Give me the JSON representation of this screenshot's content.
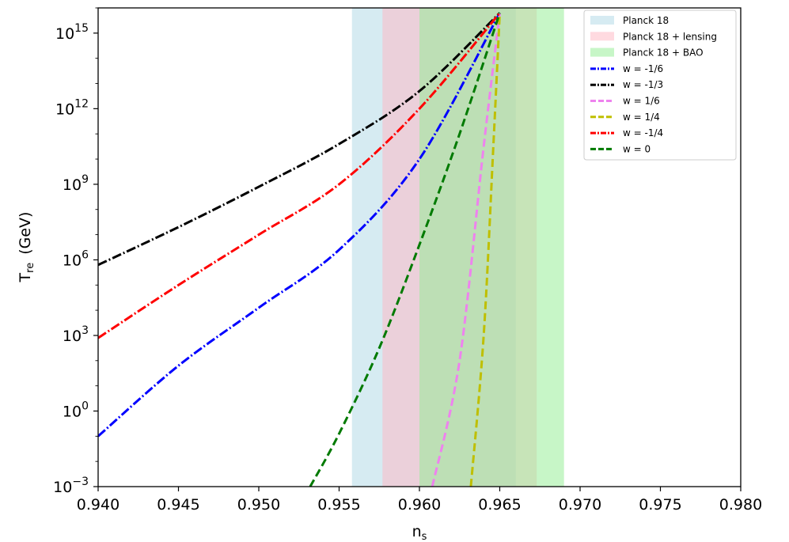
{
  "chart_data": {
    "type": "line",
    "title": "",
    "xlabel": {
      "main": "n",
      "sub": "s"
    },
    "ylabel": {
      "main": "T",
      "sub": "re",
      "unit": "(GeV)"
    },
    "xlim": [
      0.94,
      0.98
    ],
    "ylim_log10": [
      -3,
      16.0
    ],
    "yscale": "log",
    "grid": false,
    "legend_position": "top-right",
    "x_ticks": [
      "0.940",
      "0.945",
      "0.950",
      "0.955",
      "0.960",
      "0.965",
      "0.970",
      "0.975",
      "0.980"
    ],
    "y_ticks": [
      {
        "base": "10",
        "exp": "−3",
        "log10": -3
      },
      {
        "base": "10",
        "exp": "0",
        "log10": 0
      },
      {
        "base": "10",
        "exp": "3",
        "log10": 3
      },
      {
        "base": "10",
        "exp": "6",
        "log10": 6
      },
      {
        "base": "10",
        "exp": "9",
        "log10": 9
      },
      {
        "base": "10",
        "exp": "12",
        "log10": 12
      },
      {
        "base": "10",
        "exp": "15",
        "log10": 15
      }
    ],
    "bands": [
      {
        "name": "Planck 18",
        "x_range": [
          0.9558,
          0.966
        ],
        "color": "#add8e6",
        "opacity": 0.5
      },
      {
        "name": "Planck 18 + lensing",
        "x_range": [
          0.9577,
          0.9673
        ],
        "color": "#ffb6c1",
        "opacity": 0.5
      },
      {
        "name": "Planck 18 + BAO",
        "x_range": [
          0.96,
          0.969
        ],
        "color": "#90ee90",
        "opacity": 0.5
      }
    ],
    "series": [
      {
        "name": "w = -1/6",
        "color": "#0000ff",
        "dash": "dashdot",
        "x": [
          0.94,
          0.945,
          0.95,
          0.955,
          0.96,
          0.965
        ],
        "log10_y": [
          -1.0,
          1.8,
          4.1,
          6.4,
          10.0,
          15.8
        ]
      },
      {
        "name": "w = -1/3",
        "color": "#000000",
        "dash": "dashdot",
        "x": [
          0.94,
          0.945,
          0.95,
          0.955,
          0.96,
          0.965
        ],
        "log10_y": [
          5.8,
          7.3,
          8.9,
          10.6,
          12.7,
          15.8
        ]
      },
      {
        "name": "w = 1/6",
        "color": "#ee82ee",
        "dash": "dashed",
        "x": [
          0.9608,
          0.9625,
          0.964,
          0.965
        ],
        "log10_y": [
          -3.0,
          2.0,
          10.5,
          15.8
        ]
      },
      {
        "name": "w = 1/4",
        "color": "#bfbf00",
        "dash": "dashed",
        "x": [
          0.9632,
          0.964,
          0.9646,
          0.965
        ],
        "log10_y": [
          -3.0,
          3.0,
          10.5,
          15.8
        ]
      },
      {
        "name": "w = -1/4",
        "color": "#ff0000",
        "dash": "dashdot",
        "x": [
          0.94,
          0.945,
          0.95,
          0.955,
          0.96,
          0.965
        ],
        "log10_y": [
          2.9,
          5.0,
          7.0,
          9.0,
          12.0,
          15.8
        ]
      },
      {
        "name": "w = 0",
        "color": "#007a00",
        "dash": "dashed",
        "x": [
          0.9532,
          0.955,
          0.9575,
          0.96,
          0.9625,
          0.965
        ],
        "log10_y": [
          -3.0,
          -0.9,
          2.5,
          6.6,
          11.0,
          15.8
        ]
      }
    ]
  }
}
